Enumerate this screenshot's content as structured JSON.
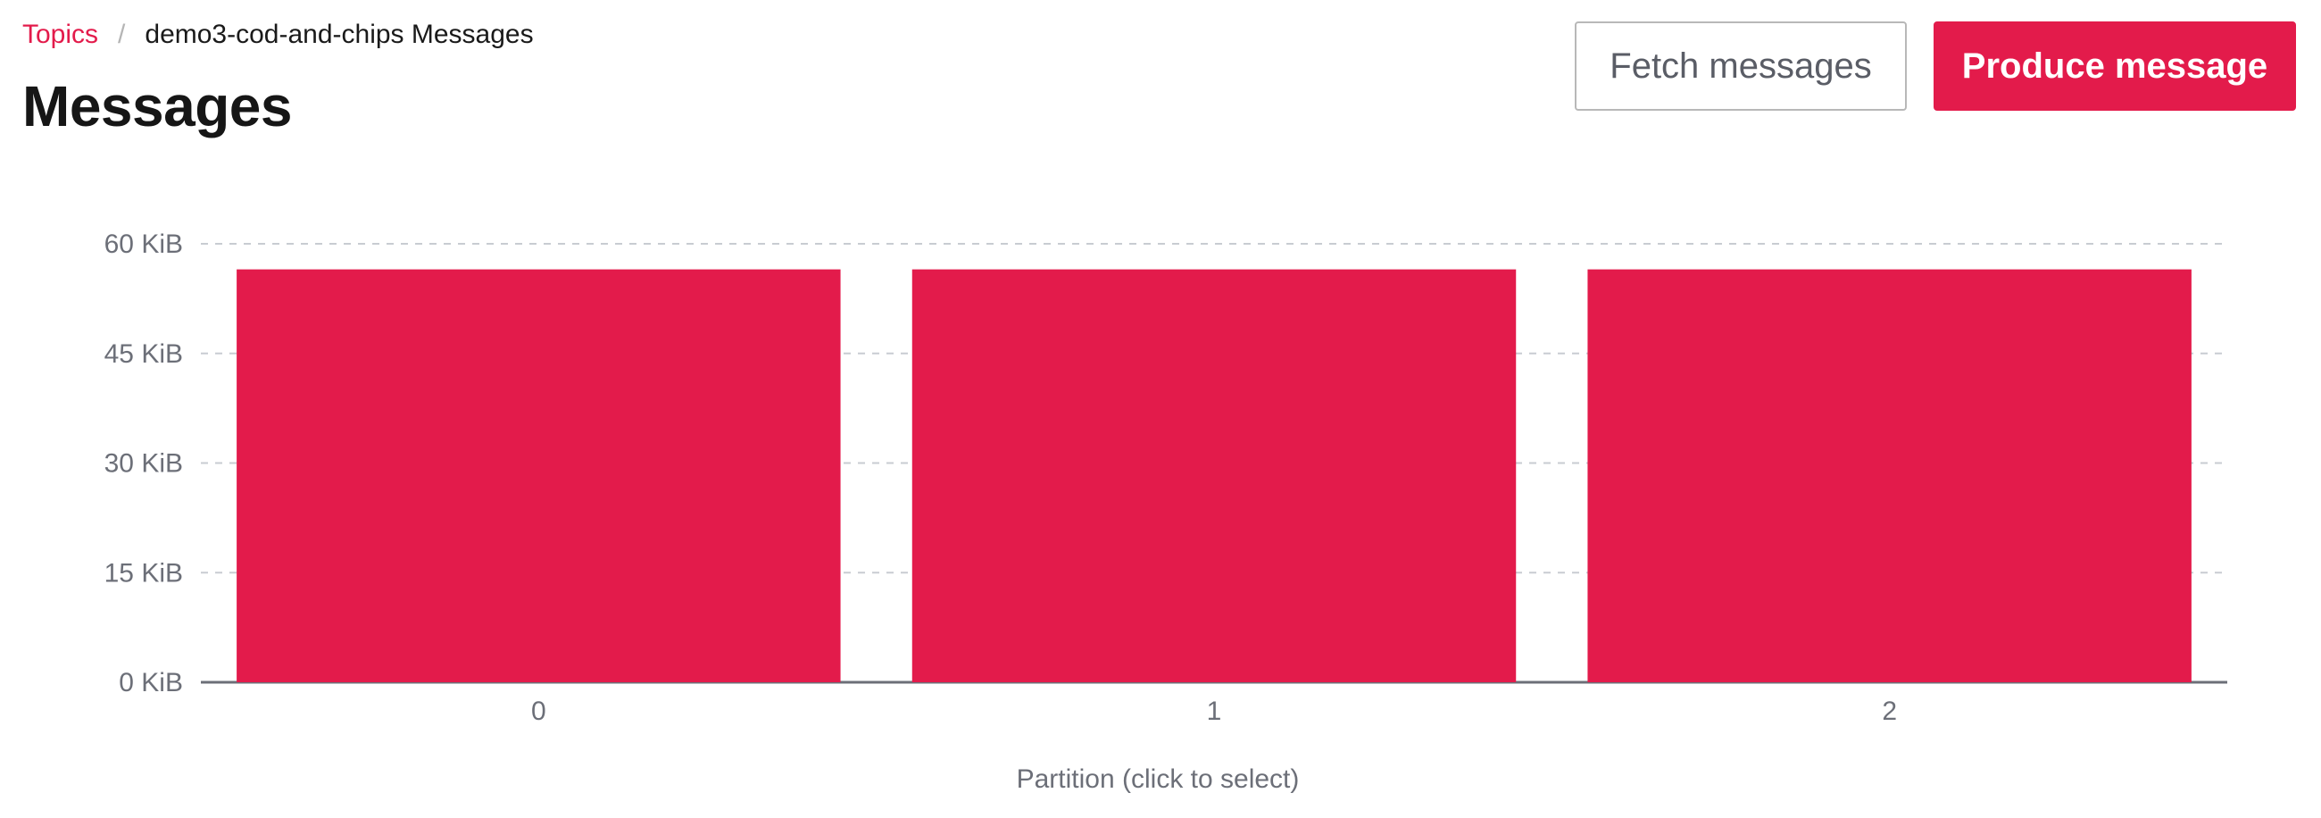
{
  "breadcrumb": {
    "parent": "Topics",
    "separator": "/",
    "current": "demo3-cod-and-chips Messages"
  },
  "header": {
    "title": "Messages"
  },
  "actions": {
    "fetch_label": "Fetch messages",
    "produce_label": "Produce message"
  },
  "colors": {
    "accent": "#e31b4b",
    "grid": "#c8ccd2",
    "axis": "#6c6f78"
  },
  "chart_data": {
    "type": "bar",
    "categories": [
      "0",
      "1",
      "2"
    ],
    "values": [
      56.5,
      56.5,
      56.5
    ],
    "unit": "KiB",
    "ylim": [
      0,
      60
    ],
    "yticks": [
      0,
      15,
      30,
      45,
      60
    ],
    "ytick_labels": [
      "0 KiB",
      "15 KiB",
      "30 KiB",
      "45 KiB",
      "60 KiB"
    ],
    "xlabel": "Partition (click to select)",
    "ylabel": "",
    "grid": true,
    "legend": "none"
  }
}
